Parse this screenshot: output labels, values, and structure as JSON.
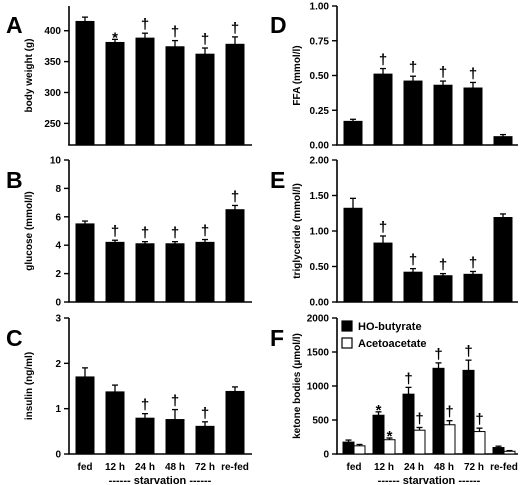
{
  "chart_data": [
    {
      "letter": "A",
      "type": "bar",
      "ylabel": "body weight (g)",
      "ylim": [
        215,
        440
      ],
      "yticks": [
        250,
        300,
        350,
        400
      ],
      "ytick_labels": [
        "250",
        "300",
        "350",
        "400"
      ],
      "categories": [
        "fed",
        "12 h",
        "24 h",
        "48 h",
        "72 h",
        "re-fed"
      ],
      "series": [
        {
          "values": [
            415,
            381,
            388,
            374,
            362,
            378
          ],
          "errors": [
            7,
            5,
            8,
            10,
            10,
            12
          ],
          "fill": "#000000",
          "markers": [
            "",
            "*",
            "†",
            "†",
            "†",
            "†"
          ]
        }
      ]
    },
    {
      "letter": "B",
      "type": "bar",
      "ylabel": "glucose (mmol/l)",
      "ylim": [
        0,
        10
      ],
      "yticks": [
        0,
        2,
        4,
        6,
        8,
        10
      ],
      "ytick_labels": [
        "0",
        "2",
        "4",
        "6",
        "8",
        "10"
      ],
      "categories": [
        "fed",
        "12 h",
        "24 h",
        "48 h",
        "72 h",
        "re-fed"
      ],
      "series": [
        {
          "values": [
            5.5,
            4.2,
            4.1,
            4.1,
            4.2,
            6.5
          ],
          "errors": [
            0.2,
            0.15,
            0.15,
            0.15,
            0.2,
            0.3
          ],
          "fill": "#000000",
          "markers": [
            "",
            "†",
            "†",
            "†",
            "†",
            "†"
          ]
        }
      ]
    },
    {
      "letter": "C",
      "type": "bar",
      "ylabel": "insulin (ng/ml)",
      "ylim": [
        0,
        3
      ],
      "yticks": [
        0,
        1,
        2,
        3
      ],
      "ytick_labels": [
        "0",
        "1",
        "2",
        "3"
      ],
      "categories": [
        "fed",
        "12 h",
        "24 h",
        "48 h",
        "72 h",
        "re-fed"
      ],
      "series": [
        {
          "values": [
            1.7,
            1.37,
            0.79,
            0.76,
            0.61,
            1.38
          ],
          "errors": [
            0.2,
            0.15,
            0.1,
            0.22,
            0.1,
            0.1
          ],
          "fill": "#000000",
          "markers": [
            "",
            "",
            "†",
            "†",
            "†",
            ""
          ]
        }
      ],
      "show_xcats": true,
      "starvation_label": "------ starvation ------"
    },
    {
      "letter": "D",
      "type": "bar",
      "ylabel": "FFA (mmol/l)",
      "ylim": [
        0,
        1
      ],
      "yticks": [
        0,
        0.25,
        0.5,
        0.75,
        1
      ],
      "ytick_labels": [
        "0.00",
        "0.25",
        "0.50",
        "0.75",
        "1.00"
      ],
      "categories": [
        "fed",
        "12 h",
        "24 h",
        "48 h",
        "72 h",
        "re-fed"
      ],
      "series": [
        {
          "values": [
            0.17,
            0.51,
            0.46,
            0.43,
            0.41,
            0.06
          ],
          "errors": [
            0.015,
            0.04,
            0.035,
            0.03,
            0.04,
            0.015
          ],
          "fill": "#000000",
          "markers": [
            "",
            "†",
            "†",
            "†",
            "†",
            ""
          ]
        }
      ]
    },
    {
      "letter": "E",
      "type": "bar",
      "ylabel": "triglyceride (mmol/l)",
      "ylim": [
        0,
        2
      ],
      "yticks": [
        0,
        0.5,
        1,
        1.5,
        2
      ],
      "ytick_labels": [
        "0.00",
        "0.50",
        "1.00",
        "1.50",
        "2.00"
      ],
      "categories": [
        "fed",
        "12 h",
        "24 h",
        "48 h",
        "72 h",
        "re-fed"
      ],
      "series": [
        {
          "values": [
            1.32,
            0.83,
            0.42,
            0.37,
            0.39,
            1.19
          ],
          "errors": [
            0.14,
            0.1,
            0.05,
            0.03,
            0.04,
            0.05
          ],
          "fill": "#000000",
          "markers": [
            "",
            "†",
            "†",
            "†",
            "†",
            ""
          ]
        }
      ]
    },
    {
      "letter": "F",
      "type": "bar",
      "ylabel": "ketone bodies (µmol/l)",
      "ylim": [
        0,
        2000
      ],
      "yticks": [
        0,
        500,
        1000,
        1500,
        2000
      ],
      "ytick_labels": [
        "0",
        "500",
        "1000",
        "1500",
        "2000"
      ],
      "categories": [
        "fed",
        "12 h",
        "24 h",
        "48 h",
        "72 h",
        "re-fed"
      ],
      "series": [
        {
          "name": "HO-butyrate",
          "values": [
            175,
            570,
            880,
            1260,
            1230,
            95
          ],
          "errors": [
            30,
            50,
            100,
            80,
            150,
            20
          ],
          "fill": "#000000",
          "markers": [
            "",
            "*",
            "†",
            "†",
            "†",
            ""
          ]
        },
        {
          "name": "Acetoacetate",
          "values": [
            120,
            210,
            350,
            430,
            330,
            40
          ],
          "errors": [
            20,
            25,
            40,
            60,
            50,
            10
          ],
          "fill": "#ffffff",
          "markers": [
            "",
            "*",
            "†",
            "†",
            "†",
            ""
          ]
        }
      ],
      "legend": "top-left",
      "show_xcats": true,
      "starvation_label": "------ starvation ------"
    }
  ]
}
